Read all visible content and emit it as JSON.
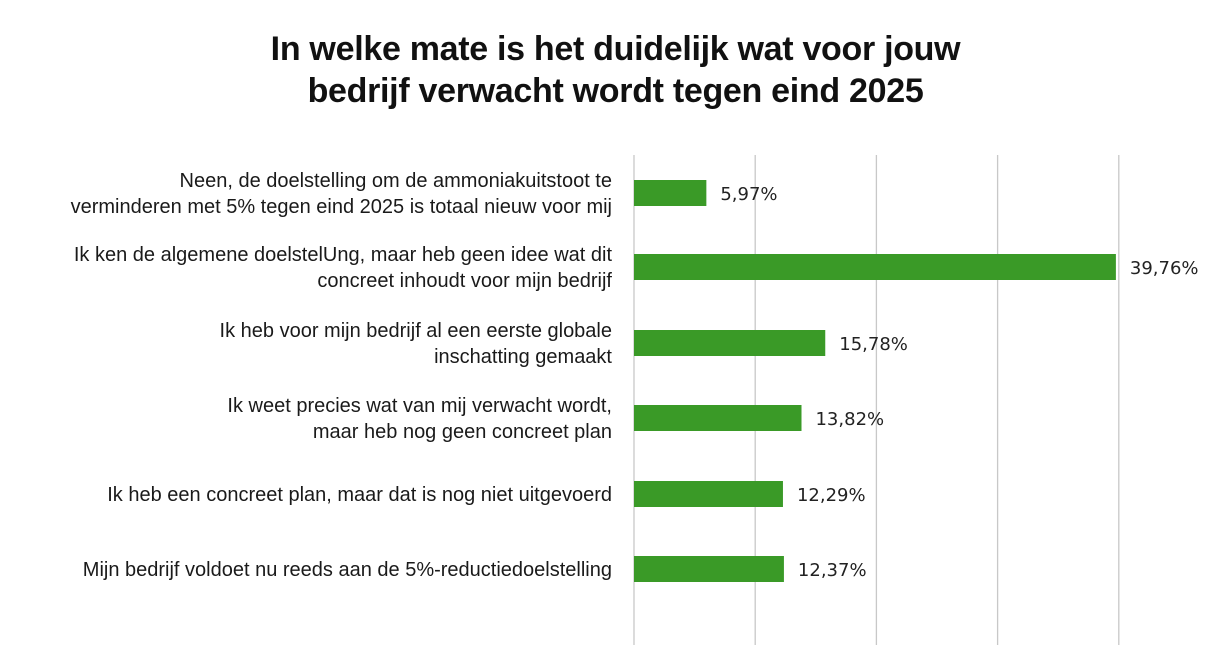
{
  "chart_data": {
    "type": "bar",
    "orientation": "horizontal",
    "title_lines": [
      "In welke mate is het duidelijk wat voor jouw",
      "bedrijf verwacht wordt tegen eind 2025"
    ],
    "categories": [
      [
        "Neen, de doelstelling om de ammoniakuitstoot te",
        "verminderen met 5% tegen eind 2025 is totaal nieuw voor mij"
      ],
      [
        "Ik ken de algemene doelstelUng, maar heb geen idee wat dit",
        "concreet inhoudt voor mijn bedrijf"
      ],
      [
        "Ik heb voor mijn bedrijf al een eerste globale",
        "inschatting gemaakt"
      ],
      [
        "Ik weet precies wat van mij verwacht wordt,",
        "maar heb nog geen concreet plan"
      ],
      [
        "Ik heb een concreet plan, maar dat is nog niet uitgevoerd"
      ],
      [
        "Mijn bedrijf voldoet nu reeds aan de 5%-reductiedoelstelling"
      ]
    ],
    "values": [
      5.97,
      39.76,
      15.78,
      13.82,
      12.29,
      12.37
    ],
    "value_labels": [
      "5,97%",
      "39,76%",
      "15,78%",
      "13,82%",
      "12,29%",
      "12,37%"
    ],
    "xlim": [
      0,
      50
    ],
    "gridlines": [
      0,
      10,
      20,
      30,
      40,
      50
    ],
    "xlabel": "",
    "ylabel": "",
    "colors": {
      "bar": "#3a9a27",
      "grid": "#c8c8c8"
    }
  }
}
